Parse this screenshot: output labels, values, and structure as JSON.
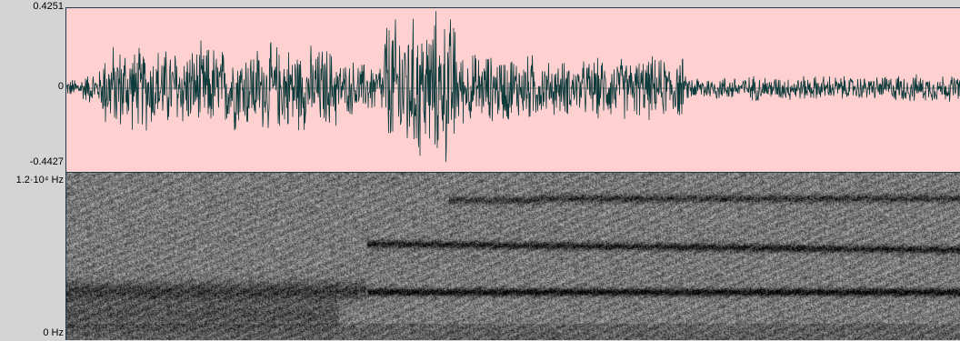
{
  "waveform": {
    "max_label": "0.4251",
    "zero_label": "0",
    "min_label": "-0.4427",
    "background_color": "#ffd0d0",
    "trace_color": "#0c3a3a"
  },
  "spectrogram": {
    "freq_max_label": "1.2·10⁴ Hz",
    "freq_min_label": "0 Hz",
    "colormap": "grayscale"
  },
  "colors": {
    "panel_bg": "#d4d4d4",
    "border": "#1f3b4a"
  }
}
